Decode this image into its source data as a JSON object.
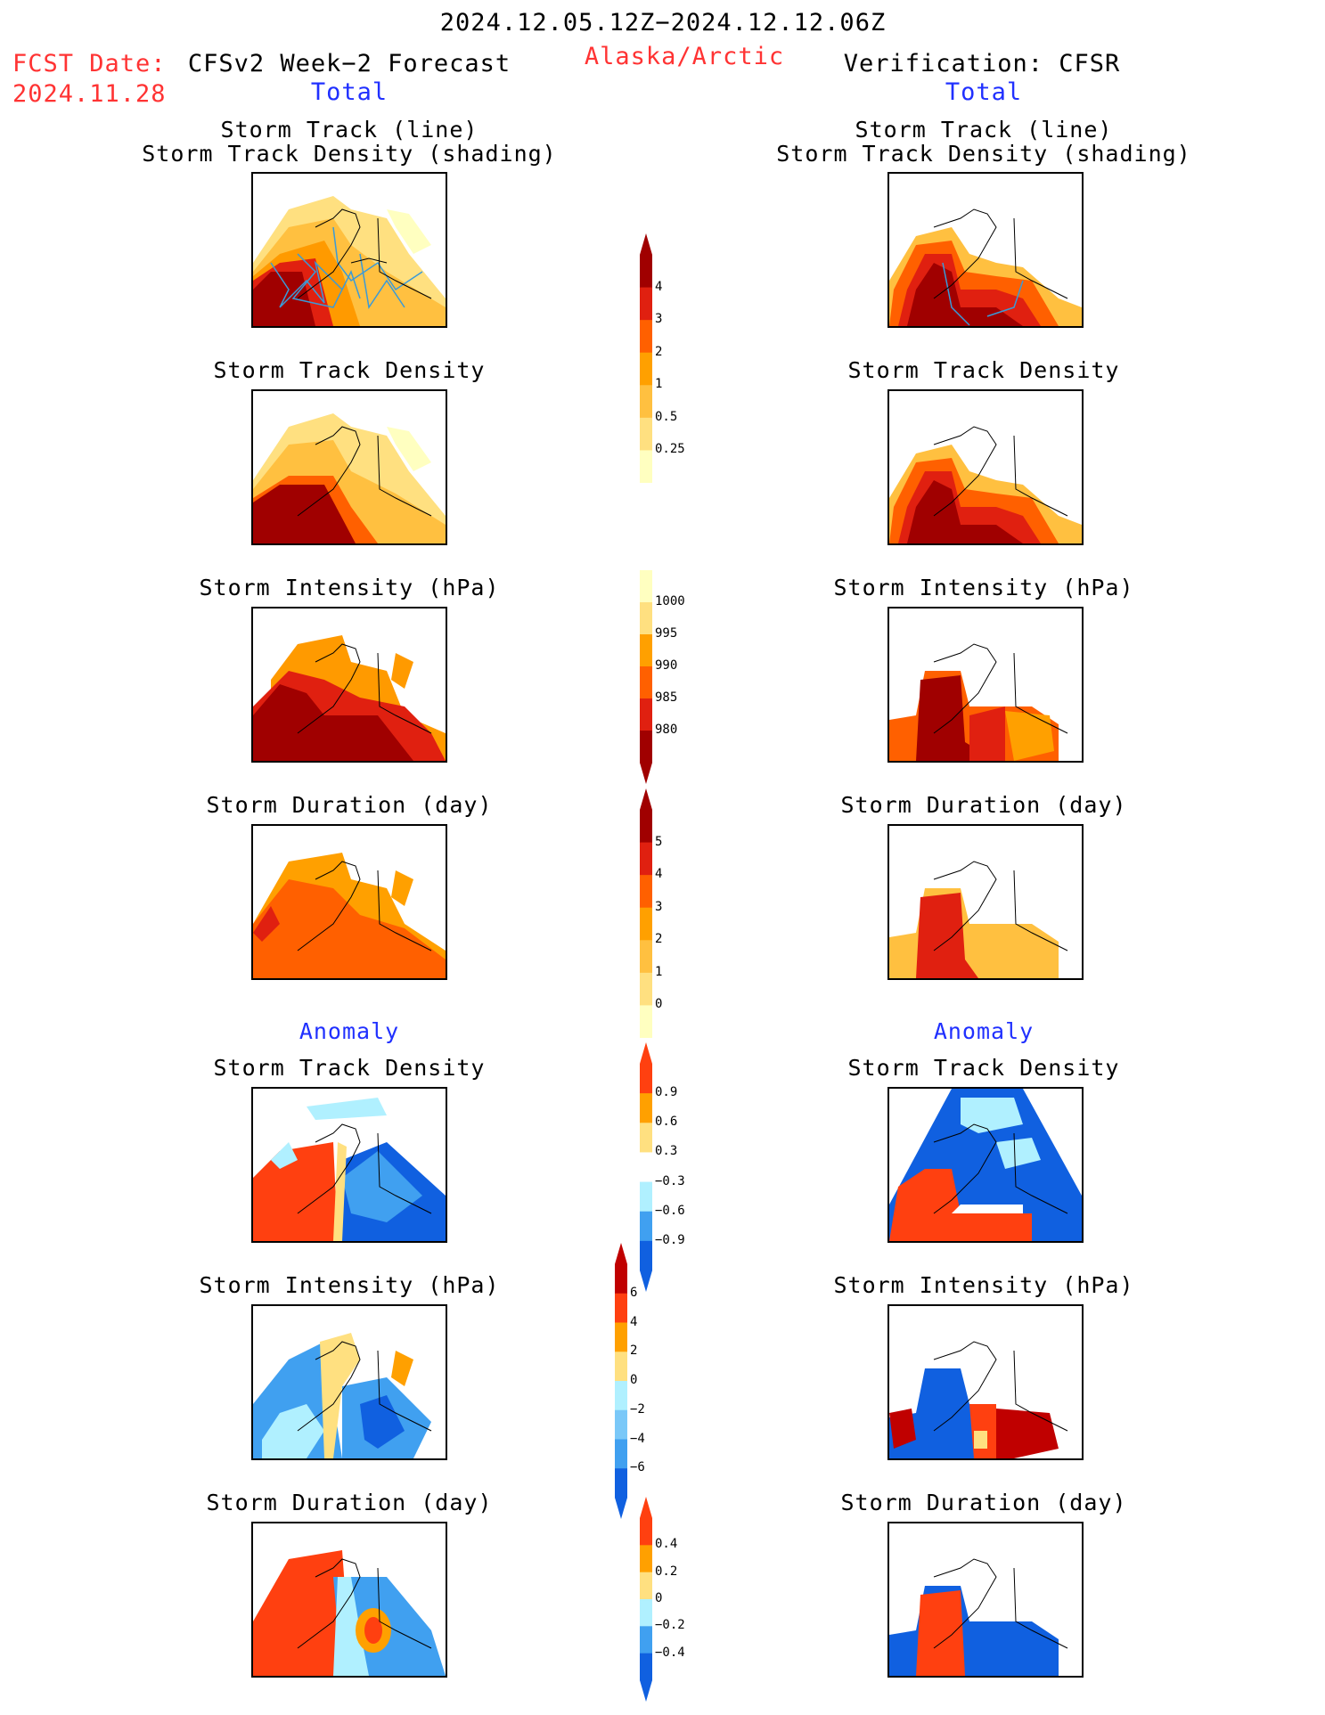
{
  "header": {
    "date_range": "2024.12.05.12Z−2024.12.12.06Z",
    "fcst_label": "FCST Date:",
    "fcst_date": "2024.11.28",
    "left_title": "CFSv2 Week−2 Forecast",
    "region": "Alaska/Arctic",
    "right_title": "Verification: CFSR",
    "left_subtitle": "Total",
    "right_subtitle": "Total"
  },
  "panels": {
    "track_line_1": "Storm Track (line)",
    "track_line_2": "Storm Track Density (shading)",
    "track_density": "Storm Track Density",
    "intensity": "Storm Intensity (hPa)",
    "duration": "Storm Duration (day)",
    "anomaly": "Anomaly"
  },
  "colorbars": {
    "density": [
      "4",
      "3",
      "2",
      "1",
      "0.5",
      "0.25"
    ],
    "intensity": [
      "1000",
      "995",
      "990",
      "985",
      "980"
    ],
    "duration": [
      "5",
      "4",
      "3",
      "2",
      "1",
      "0"
    ],
    "density_anom": [
      "0.9",
      "0.6",
      "0.3",
      "−0.3",
      "−0.6",
      "−0.9"
    ],
    "intensity_anom": [
      "6",
      "4",
      "2",
      "0",
      "−2",
      "−4",
      "−6"
    ],
    "duration_anom": [
      "0.4",
      "0.2",
      "0",
      "−0.2",
      "−0.4"
    ]
  },
  "colors": {
    "title_red": "#ff3333",
    "title_blue": "#2030ff",
    "warm_scale": [
      "#ffffc0",
      "#ffe080",
      "#ffc040",
      "#ff9a00",
      "#ff6000",
      "#e02010",
      "#a00000"
    ],
    "anom_scale": [
      "#1060e0",
      "#40a0f0",
      "#b0f0ff",
      "#ffffff",
      "#ffe080",
      "#ffa000",
      "#ff4010",
      "#c00000"
    ]
  }
}
